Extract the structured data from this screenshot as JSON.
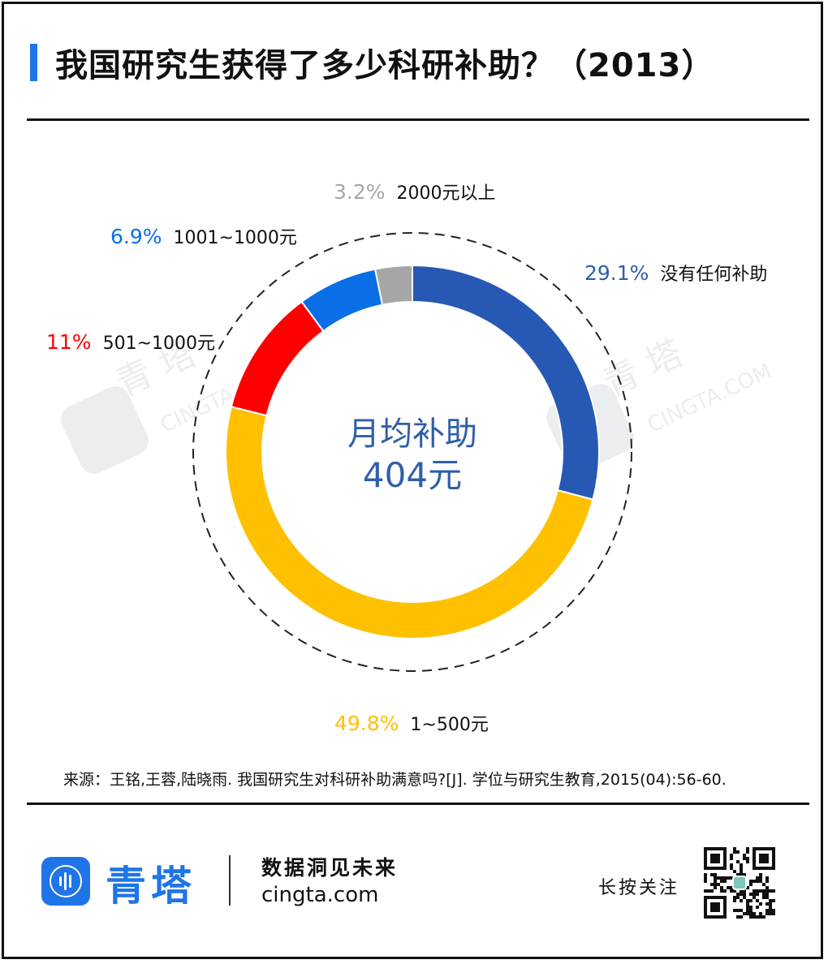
{
  "header": {
    "title": "我国研究生获得了多少科研补助？（2013）",
    "accent_color": "#1f74e8"
  },
  "chart_data": {
    "type": "pie",
    "style": "donut",
    "title": "我国研究生获得了多少科研补助？（2013）",
    "center_label_line1": "月均补助",
    "center_label_line2": "404元",
    "slices": [
      {
        "label": "没有任何补助",
        "pct_label": "29.1%",
        "value": 29.1,
        "color": "#2759b4"
      },
      {
        "label": "1~500元",
        "pct_label": "49.8%",
        "value": 49.8,
        "color": "#ffc000"
      },
      {
        "label": "501~1000元",
        "pct_label": "11%",
        "value": 11.0,
        "color": "#ff0000"
      },
      {
        "label": "1001~1000元",
        "pct_label": "6.9%",
        "value": 6.9,
        "color": "#0a6ee6"
      },
      {
        "label": "2000元以上",
        "pct_label": "3.2%",
        "value": 3.2,
        "color": "#a6a6a6"
      }
    ]
  },
  "source": {
    "text": "来源：王铭,王蓉,陆晓雨. 我国研究生对科研补助满意吗?[J]. 学位与研究生教育,2015(04):56-60."
  },
  "footer": {
    "brand_name": "青塔",
    "slogan": "数据洞见未来",
    "site": "cingta.com",
    "follow_text": "长按关注",
    "logo_icon": "cingta-logo-icon",
    "qr_icon": "qr-code-icon"
  },
  "watermark": {
    "brand": "青 塔",
    "site": "CINGTA.COM"
  }
}
